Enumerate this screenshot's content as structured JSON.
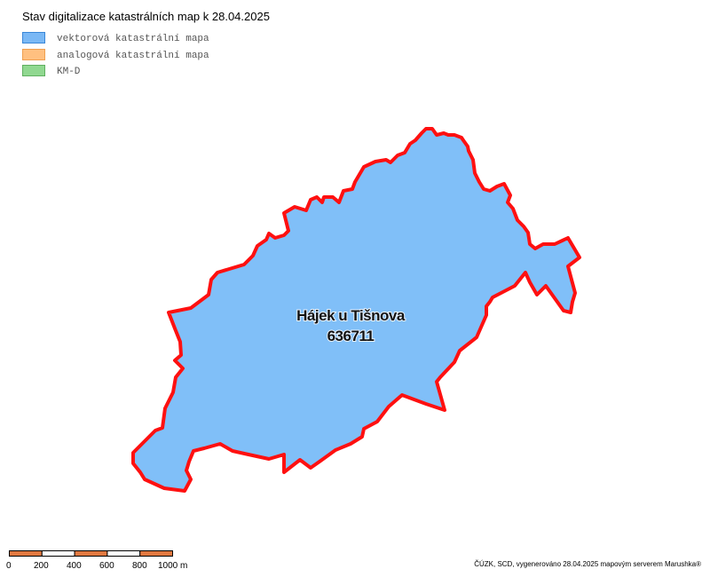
{
  "title": "Stav digitalizace katastrálních map k 28.04.2025",
  "legend": [
    {
      "label": "vektorová katastrální mapa"
    },
    {
      "label": "analogová katastrální mapa"
    },
    {
      "label": "KM-D"
    }
  ],
  "parcel": {
    "name": "Hájek u Tišnova",
    "code": "636711"
  },
  "scale": {
    "labels": [
      "0",
      "200",
      "400",
      "600",
      "800",
      "1000 m"
    ]
  },
  "footer": "ČÚZK, SCD, vygenerováno 28.04.2025 mapovým serverem Marushka®"
}
